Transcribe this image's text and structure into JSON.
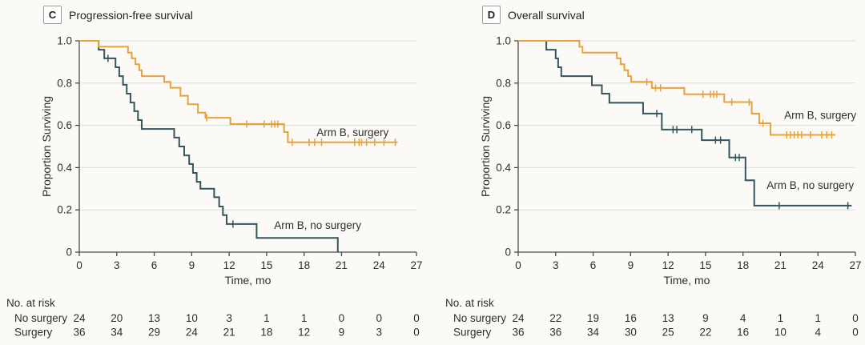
{
  "figure": {
    "colors": {
      "surgery": "#e9a13c",
      "no_surgery": "#33565c",
      "grid": "#dbdbd9",
      "axis": "#4a4a4a",
      "text": "#2e2e2e"
    }
  },
  "chart_data": [
    {
      "type": "line",
      "subtype": "kaplan-meier-step",
      "panel_letter": "C",
      "title": "Progression-free survival",
      "xlabel": "Time, mo",
      "ylabel": "Proportion Surviving",
      "xlim": [
        0,
        27
      ],
      "ylim": [
        0,
        1
      ],
      "xticks": [
        0,
        3,
        6,
        9,
        12,
        15,
        18,
        21,
        24,
        27
      ],
      "ytick_values": [
        1,
        0.8,
        0.6,
        0.4,
        0.2,
        0
      ],
      "ytick_labels": [
        "1.0",
        "0.8",
        "0.6",
        "0.4",
        "0.2",
        "0"
      ],
      "grid": "horizontal",
      "series": [
        {
          "name": "Arm B, surgery",
          "color_key": "surgery",
          "steps": [
            [
              0,
              1.0
            ],
            [
              1.55,
              0.972
            ],
            [
              3.9,
              0.944
            ],
            [
              4.2,
              0.917
            ],
            [
              4.5,
              0.889
            ],
            [
              4.8,
              0.861
            ],
            [
              5.0,
              0.833
            ],
            [
              6.8,
              0.806
            ],
            [
              7.3,
              0.778
            ],
            [
              8.1,
              0.74
            ],
            [
              8.7,
              0.7
            ],
            [
              9.5,
              0.66
            ],
            [
              10.1,
              0.636
            ],
            [
              12.1,
              0.606
            ],
            [
              16.4,
              0.568
            ],
            [
              16.7,
              0.52
            ]
          ],
          "end": 25.5,
          "censors": [
            [
              10.2,
              0.636
            ],
            [
              13.4,
              0.606
            ],
            [
              14.8,
              0.606
            ],
            [
              15.4,
              0.606
            ],
            [
              15.65,
              0.606
            ],
            [
              15.9,
              0.606
            ],
            [
              17.05,
              0.52
            ],
            [
              18.4,
              0.52
            ],
            [
              18.85,
              0.52
            ],
            [
              19.4,
              0.52
            ],
            [
              22.05,
              0.52
            ],
            [
              22.4,
              0.52
            ],
            [
              22.6,
              0.52
            ],
            [
              23.0,
              0.52
            ],
            [
              23.65,
              0.52
            ],
            [
              24.4,
              0.52
            ],
            [
              25.3,
              0.52
            ]
          ],
          "label": {
            "t": 19.0,
            "s": 0.565
          }
        },
        {
          "name": "Arm B, no surgery",
          "color_key": "no_surgery",
          "steps": [
            [
              0,
              1.0
            ],
            [
              1.55,
              0.958
            ],
            [
              2.0,
              0.917
            ],
            [
              2.9,
              0.875
            ],
            [
              3.2,
              0.833
            ],
            [
              3.5,
              0.792
            ],
            [
              3.8,
              0.75
            ],
            [
              4.1,
              0.708
            ],
            [
              4.4,
              0.667
            ],
            [
              4.7,
              0.625
            ],
            [
              5.0,
              0.583
            ],
            [
              7.6,
              0.542
            ],
            [
              8.0,
              0.5
            ],
            [
              8.4,
              0.458
            ],
            [
              8.8,
              0.417
            ],
            [
              9.1,
              0.375
            ],
            [
              9.4,
              0.333
            ],
            [
              9.7,
              0.3
            ],
            [
              10.8,
              0.26
            ],
            [
              11.2,
              0.216
            ],
            [
              11.5,
              0.175
            ],
            [
              11.8,
              0.133
            ],
            [
              14.2,
              0.067
            ],
            [
              20.7,
              0.0
            ]
          ],
          "end": 20.7,
          "censors": [
            [
              2.3,
              0.917
            ],
            [
              12.3,
              0.133
            ]
          ],
          "label": {
            "t": 15.6,
            "s": 0.125
          }
        }
      ],
      "risk_table": {
        "heading": "No. at risk",
        "times": [
          0,
          3,
          6,
          9,
          12,
          15,
          18,
          21,
          24,
          27
        ],
        "rows": [
          {
            "label": "No surgery",
            "counts": [
              24,
              20,
              13,
              10,
              3,
              1,
              1,
              0,
              0,
              0
            ]
          },
          {
            "label": "Surgery",
            "counts": [
              36,
              34,
              29,
              24,
              21,
              18,
              12,
              9,
              3,
              0
            ]
          }
        ]
      }
    },
    {
      "type": "line",
      "subtype": "kaplan-meier-step",
      "panel_letter": "D",
      "title": "Overall survival",
      "xlabel": "Time, mo",
      "ylabel": "Proportion Surviving",
      "xlim": [
        0,
        27
      ],
      "ylim": [
        0,
        1
      ],
      "xticks": [
        0,
        3,
        6,
        9,
        12,
        15,
        18,
        21,
        24,
        27
      ],
      "ytick_values": [
        1,
        0.8,
        0.6,
        0.4,
        0.2,
        0
      ],
      "ytick_labels": [
        "1.0",
        "0.8",
        "0.6",
        "0.4",
        "0.2",
        "0"
      ],
      "grid": "horizontal",
      "series": [
        {
          "name": "Arm B, surgery",
          "color_key": "surgery",
          "steps": [
            [
              0,
              1.0
            ],
            [
              4.9,
              0.972
            ],
            [
              5.15,
              0.944
            ],
            [
              7.9,
              0.917
            ],
            [
              8.2,
              0.889
            ],
            [
              8.5,
              0.861
            ],
            [
              8.8,
              0.833
            ],
            [
              9.05,
              0.806
            ],
            [
              10.7,
              0.777
            ],
            [
              13.3,
              0.747
            ],
            [
              16.5,
              0.71
            ],
            [
              18.7,
              0.656
            ],
            [
              19.3,
              0.61
            ],
            [
              20.2,
              0.555
            ]
          ],
          "end": 25.4,
          "censors": [
            [
              10.3,
              0.806
            ],
            [
              11.0,
              0.777
            ],
            [
              11.4,
              0.777
            ],
            [
              14.8,
              0.747
            ],
            [
              15.4,
              0.747
            ],
            [
              15.65,
              0.747
            ],
            [
              15.9,
              0.747
            ],
            [
              17.1,
              0.71
            ],
            [
              18.5,
              0.71
            ],
            [
              19.6,
              0.61
            ],
            [
              21.5,
              0.555
            ],
            [
              21.8,
              0.555
            ],
            [
              22.1,
              0.555
            ],
            [
              22.4,
              0.555
            ],
            [
              22.7,
              0.555
            ],
            [
              23.4,
              0.555
            ],
            [
              24.3,
              0.555
            ],
            [
              24.7,
              0.555
            ],
            [
              25.1,
              0.555
            ]
          ],
          "label": {
            "t": 21.3,
            "s": 0.645
          }
        },
        {
          "name": "Arm B, no surgery",
          "color_key": "no_surgery",
          "steps": [
            [
              0,
              1.0
            ],
            [
              2.25,
              0.958
            ],
            [
              3.0,
              0.917
            ],
            [
              3.2,
              0.875
            ],
            [
              3.45,
              0.833
            ],
            [
              5.9,
              0.79
            ],
            [
              6.7,
              0.75
            ],
            [
              7.3,
              0.707
            ],
            [
              10.0,
              0.656
            ],
            [
              11.5,
              0.58
            ],
            [
              14.7,
              0.53
            ],
            [
              16.9,
              0.448
            ],
            [
              18.2,
              0.34
            ],
            [
              18.9,
              0.22
            ]
          ],
          "end": 26.7,
          "censors": [
            [
              11.1,
              0.656
            ],
            [
              12.4,
              0.58
            ],
            [
              12.7,
              0.58
            ],
            [
              13.9,
              0.58
            ],
            [
              15.8,
              0.53
            ],
            [
              16.2,
              0.53
            ],
            [
              17.4,
              0.448
            ],
            [
              17.7,
              0.448
            ],
            [
              20.9,
              0.22
            ],
            [
              26.4,
              0.22
            ]
          ],
          "label": {
            "t": 19.9,
            "s": 0.315
          }
        }
      ],
      "risk_table": {
        "heading": "No. at risk",
        "times": [
          0,
          3,
          6,
          9,
          12,
          15,
          18,
          21,
          24,
          27
        ],
        "rows": [
          {
            "label": "No surgery",
            "counts": [
              24,
              22,
              19,
              16,
              13,
              9,
              4,
              1,
              1,
              0
            ]
          },
          {
            "label": "Surgery",
            "counts": [
              36,
              36,
              34,
              30,
              25,
              22,
              16,
              10,
              4,
              0
            ]
          }
        ]
      }
    }
  ]
}
